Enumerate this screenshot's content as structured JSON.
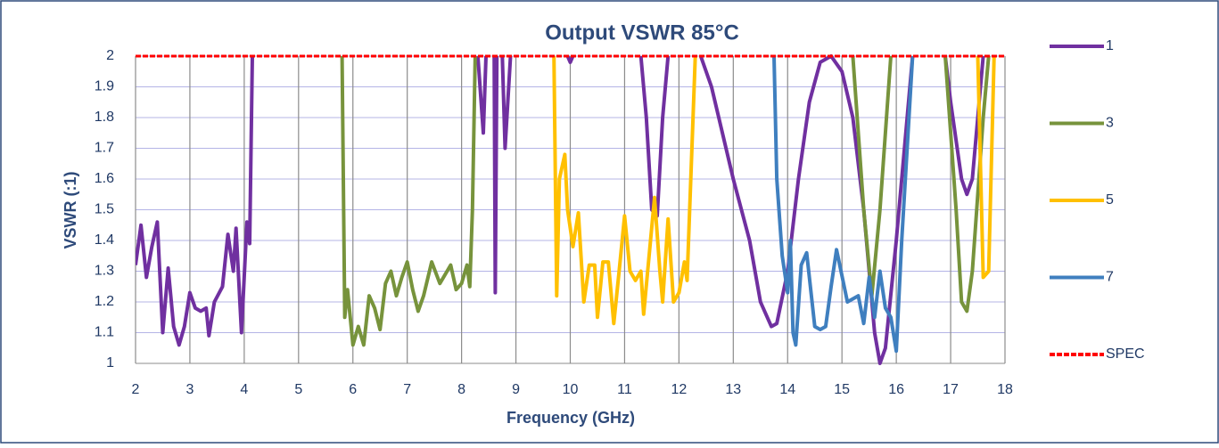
{
  "chart_data": {
    "type": "line",
    "title": "Output VSWR 85°C",
    "x_label": "Frequency (GHz)",
    "y_label": "VSWR (:1)",
    "xlim": [
      2,
      18
    ],
    "xticks": [
      2,
      3,
      4,
      5,
      6,
      7,
      8,
      9,
      10,
      11,
      12,
      13,
      14,
      15,
      16,
      17,
      18
    ],
    "ylim": [
      1,
      2
    ],
    "yticks": [
      1,
      1.1,
      1.2,
      1.3,
      1.4,
      1.5,
      1.6,
      1.7,
      1.8,
      1.9,
      2
    ],
    "grid": true,
    "legend": "right",
    "series": [
      {
        "name": "1",
        "color": "#7030a0",
        "x": [
          2.0,
          2.1,
          2.2,
          2.3,
          2.4,
          2.5,
          2.6,
          2.7,
          2.8,
          2.9,
          3.0,
          3.1,
          3.2,
          3.3,
          3.35,
          3.45,
          3.6,
          3.7,
          3.8,
          3.85,
          3.95,
          4.05,
          4.1,
          4.15,
          null,
          8.3,
          8.4,
          8.45,
          null,
          8.6,
          8.62,
          8.65,
          null,
          8.75,
          8.8,
          8.9,
          null,
          9.95,
          10.0,
          10.05,
          null,
          11.3,
          11.4,
          11.5,
          11.6,
          11.7,
          11.8,
          null,
          12.4,
          12.6,
          13.0,
          13.3,
          13.5,
          13.7,
          13.8,
          14.0,
          14.2,
          14.4,
          14.6,
          14.8,
          15.0,
          15.2,
          15.4,
          15.6,
          15.7,
          15.8,
          16.0,
          16.2,
          16.3,
          null,
          16.9,
          17.0,
          17.2,
          17.3,
          17.4,
          17.6
        ],
        "values": [
          1.32,
          1.45,
          1.28,
          1.38,
          1.46,
          1.1,
          1.31,
          1.12,
          1.06,
          1.12,
          1.23,
          1.18,
          1.17,
          1.18,
          1.09,
          1.2,
          1.25,
          1.42,
          1.3,
          1.44,
          1.1,
          1.46,
          1.39,
          2,
          null,
          2,
          1.75,
          2,
          null,
          2,
          1.23,
          2,
          null,
          2,
          1.7,
          2,
          null,
          2,
          1.98,
          2,
          null,
          2,
          1.8,
          1.5,
          1.48,
          1.8,
          2,
          null,
          2,
          1.9,
          1.6,
          1.4,
          1.2,
          1.12,
          1.13,
          1.3,
          1.6,
          1.85,
          1.98,
          2,
          1.95,
          1.8,
          1.5,
          1.1,
          1.0,
          1.05,
          1.4,
          1.8,
          2,
          null,
          2,
          1.85,
          1.6,
          1.55,
          1.6,
          2
        ]
      },
      {
        "name": "3",
        "color": "#77933c",
        "x": [
          5.8,
          5.85,
          5.9,
          6.0,
          6.1,
          6.2,
          6.3,
          6.4,
          6.5,
          6.6,
          6.7,
          6.8,
          6.9,
          7.0,
          7.1,
          7.2,
          7.3,
          7.45,
          7.6,
          7.8,
          7.9,
          8.0,
          8.1,
          8.15,
          8.2,
          8.25,
          null,
          15.2,
          15.4,
          15.55,
          15.7,
          15.9,
          null,
          16.9,
          17.1,
          17.2,
          17.3,
          17.4,
          17.6,
          17.7
        ],
        "values": [
          2,
          1.15,
          1.24,
          1.06,
          1.12,
          1.06,
          1.22,
          1.18,
          1.11,
          1.26,
          1.3,
          1.22,
          1.28,
          1.33,
          1.24,
          1.17,
          1.22,
          1.33,
          1.26,
          1.32,
          1.24,
          1.26,
          1.32,
          1.25,
          1.5,
          2,
          null,
          2,
          1.5,
          1.22,
          1.5,
          2,
          null,
          2,
          1.5,
          1.2,
          1.17,
          1.3,
          1.8,
          2
        ]
      },
      {
        "name": "5",
        "color": "#ffc000",
        "x": [
          9.7,
          9.75,
          9.8,
          9.9,
          9.95,
          10.05,
          10.15,
          10.25,
          10.35,
          10.45,
          10.5,
          10.6,
          10.7,
          10.8,
          10.9,
          11.0,
          11.1,
          11.2,
          11.3,
          11.35,
          11.45,
          11.55,
          11.65,
          11.7,
          11.8,
          11.9,
          12.0,
          12.1,
          12.15,
          12.3,
          null,
          17.5,
          17.6,
          17.7,
          17.8
        ],
        "values": [
          2,
          1.22,
          1.6,
          1.68,
          1.5,
          1.38,
          1.49,
          1.2,
          1.32,
          1.32,
          1.15,
          1.33,
          1.33,
          1.13,
          1.3,
          1.48,
          1.3,
          1.27,
          1.3,
          1.16,
          1.35,
          1.54,
          1.3,
          1.2,
          1.47,
          1.2,
          1.23,
          1.33,
          1.27,
          2,
          null,
          2,
          1.28,
          1.3,
          2
        ]
      },
      {
        "name": "7",
        "color": "#3f7fbf",
        "x": [
          13.75,
          13.8,
          13.9,
          14.0,
          14.05,
          14.1,
          14.15,
          14.25,
          14.35,
          14.5,
          14.6,
          14.7,
          14.8,
          14.9,
          15.1,
          15.3,
          15.4,
          15.5,
          15.6,
          15.7,
          15.8,
          15.9,
          16.0,
          16.1,
          16.3
        ],
        "values": [
          2,
          1.6,
          1.35,
          1.23,
          1.4,
          1.1,
          1.06,
          1.32,
          1.36,
          1.12,
          1.11,
          1.12,
          1.25,
          1.37,
          1.2,
          1.22,
          1.13,
          1.28,
          1.15,
          1.3,
          1.18,
          1.15,
          1.04,
          1.4,
          2
        ]
      },
      {
        "name": "SPEC",
        "color": "#ff0000",
        "dashed": true,
        "x": [
          2,
          18
        ],
        "values": [
          2,
          2
        ]
      }
    ]
  }
}
